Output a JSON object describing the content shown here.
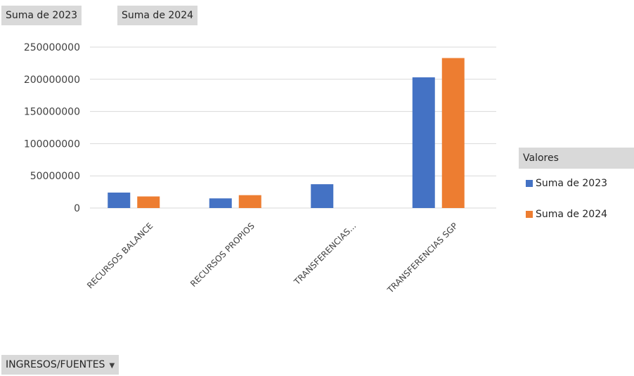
{
  "field_buttons": {
    "sum_2023": "Suma de 2023",
    "sum_2024": "Suma de 2024",
    "filter_label": "INGRESOS/FUENTES",
    "filter_icon": "chevron-down-icon"
  },
  "legend": {
    "title": "Valores",
    "items": [
      {
        "label": "Suma de 2023",
        "color": "#4472C4"
      },
      {
        "label": "Suma de 2024",
        "color": "#ED7D31"
      }
    ]
  },
  "chart_data": {
    "type": "bar",
    "categories": [
      "RECURSOS BALANCE",
      "RECURSOS PROPIOS",
      "TRANSFERENCIAS...",
      "TRANSFERENCIAS SGP"
    ],
    "series": [
      {
        "name": "Suma de 2023",
        "color": "#4472C4",
        "values": [
          24000000,
          15000000,
          37000000,
          203000000
        ]
      },
      {
        "name": "Suma de 2024",
        "color": "#ED7D31",
        "values": [
          18000000,
          20000000,
          0,
          233000000
        ]
      }
    ],
    "y_ticks": [
      "250000000",
      "200000000",
      "150000000",
      "100000000",
      "50000000",
      "0"
    ],
    "ylim": [
      0,
      250000000
    ],
    "grid": true,
    "legend_position": "right",
    "title": "",
    "xlabel": "",
    "ylabel": ""
  }
}
